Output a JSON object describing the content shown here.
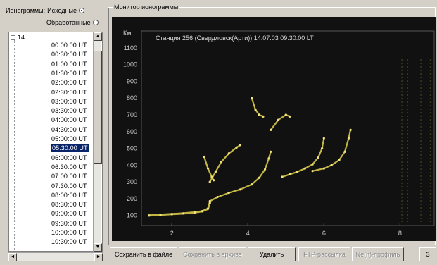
{
  "left_panel": {
    "label": "Ионограммы:",
    "radio_source": {
      "label": "Исходные",
      "checked": true
    },
    "radio_processed": {
      "label": "Обработанные",
      "checked": false
    },
    "tree": {
      "node_label": "14",
      "node_expander": "⊟",
      "items": [
        "00:00:00 UT",
        "00:30:00 UT",
        "01:00:00 UT",
        "01:30:00 UT",
        "02:00:00 UT",
        "02:30:00 UT",
        "03:00:00 UT",
        "03:30:00 UT",
        "04:00:00 UT",
        "04:30:00 UT",
        "05:00:00 UT",
        "05:30:00 UT",
        "06:00:00 UT",
        "06:30:00 UT",
        "07:00:00 UT",
        "07:30:00 UT",
        "08:00:00 UT",
        "08:30:00 UT",
        "09:00:00 UT",
        "09:30:00 UT",
        "10:00:00 UT",
        "10:30:00 UT"
      ],
      "selected_index": 11
    },
    "scroll_up": "▲",
    "scroll_down": "▼",
    "scroll_left": "◄",
    "scroll_right": "►"
  },
  "monitor": {
    "title": "Монитор ионограммы",
    "header": "Станция 256 (Свердловск(Арти))     14.07.03     09:30:00 LT",
    "chart_data": {
      "type": "scatter",
      "title": "Станция 256 (Свердловск(Арти))     14.07.03     09:30:00 LT",
      "ylabel": "Км",
      "xlabel": "",
      "xlim": [
        1.2,
        8.9
      ],
      "ylim": [
        40,
        1200
      ],
      "x_ticks": [
        2,
        4,
        6,
        8
      ],
      "y_ticks": [
        100,
        200,
        300,
        400,
        500,
        600,
        700,
        800,
        900,
        1000,
        1100
      ],
      "background": "#111111",
      "trace_color": "#e0d24a",
      "series": [
        {
          "values": [
            [
              1.4,
              100
            ],
            [
              1.7,
              104
            ],
            [
              2.0,
              108
            ],
            [
              2.3,
              112
            ],
            [
              2.6,
              118
            ],
            [
              2.8,
              125
            ],
            [
              2.95,
              140
            ],
            [
              3.0,
              175
            ]
          ]
        },
        {
          "values": [
            [
              3.0,
              185
            ],
            [
              3.2,
              210
            ],
            [
              3.5,
              235
            ],
            [
              3.8,
              255
            ],
            [
              4.1,
              285
            ],
            [
              4.3,
              325
            ],
            [
              4.45,
              375
            ],
            [
              4.55,
              440
            ],
            [
              4.6,
              480
            ]
          ]
        },
        {
          "values": [
            [
              3.0,
              300
            ],
            [
              3.15,
              360
            ],
            [
              3.3,
              420
            ],
            [
              3.5,
              470
            ],
            [
              3.7,
              505
            ],
            [
              3.8,
              520
            ]
          ]
        },
        {
          "values": [
            [
              4.9,
              330
            ],
            [
              5.1,
              345
            ],
            [
              5.3,
              360
            ],
            [
              5.5,
              380
            ],
            [
              5.7,
              405
            ],
            [
              5.85,
              445
            ],
            [
              5.95,
              500
            ],
            [
              6.0,
              560
            ]
          ]
        },
        {
          "values": [
            [
              5.7,
              365
            ],
            [
              6.0,
              380
            ],
            [
              6.2,
              400
            ],
            [
              6.4,
              430
            ],
            [
              6.55,
              480
            ],
            [
              6.65,
              560
            ],
            [
              6.7,
              610
            ]
          ]
        },
        {
          "values": [
            [
              4.6,
              610
            ],
            [
              4.8,
              670
            ],
            [
              5.0,
              700
            ],
            [
              5.1,
              690
            ]
          ]
        },
        {
          "values": [
            [
              4.1,
              800
            ],
            [
              4.2,
              730
            ],
            [
              4.3,
              700
            ],
            [
              4.4,
              690
            ]
          ]
        },
        {
          "values": [
            [
              2.85,
              450
            ],
            [
              2.95,
              380
            ],
            [
              3.05,
              330
            ],
            [
              3.1,
              310
            ]
          ]
        }
      ]
    }
  },
  "buttons": {
    "save_file": {
      "label": "Сохранить в файле",
      "disabled": false
    },
    "save_archive": {
      "label": "Сохранить в архиве",
      "disabled": true
    },
    "delete": {
      "label": "Удалить",
      "disabled": false
    },
    "ftp": {
      "label": "FTP-рассылка",
      "disabled": true
    },
    "profile": {
      "label": "Ne(h)-профиль",
      "disabled": true
    },
    "close": {
      "label": "З",
      "disabled": false
    }
  }
}
